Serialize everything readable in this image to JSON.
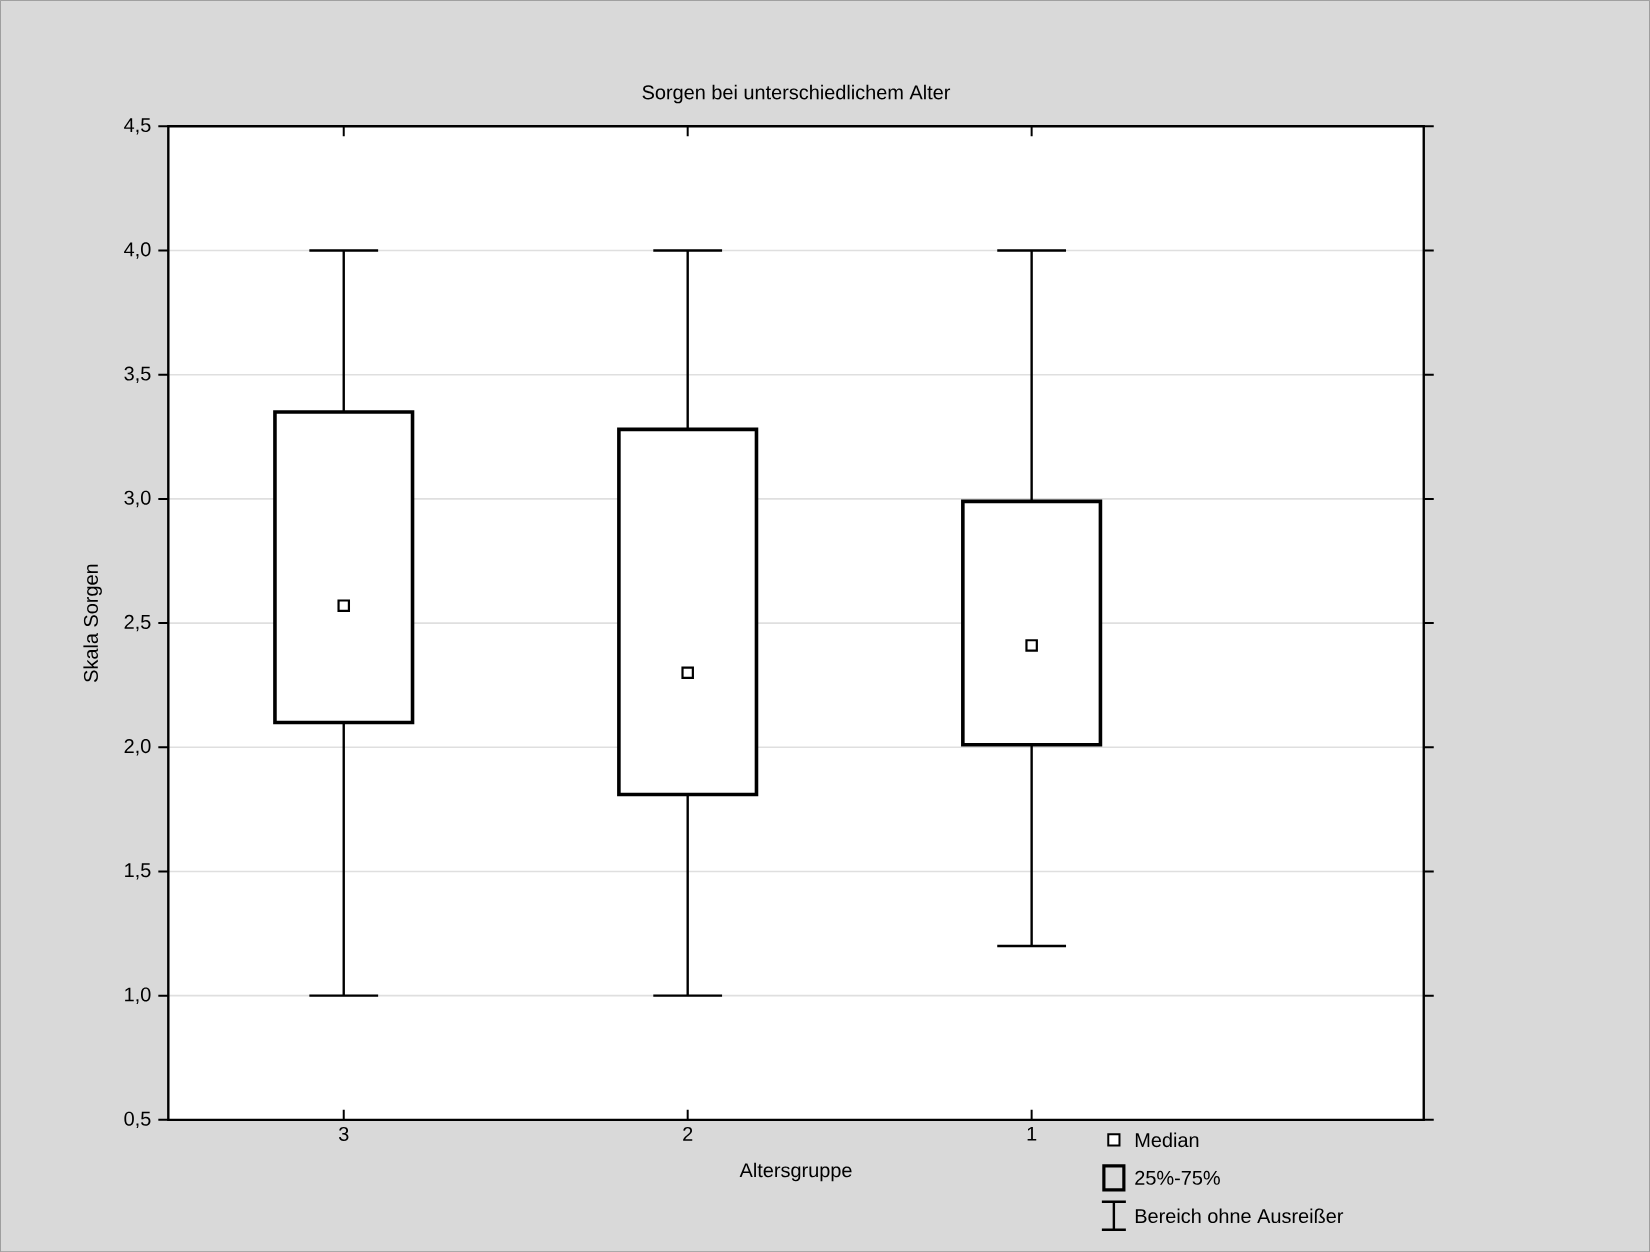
{
  "chart_data": {
    "type": "box",
    "title": "Sorgen bei unterschiedlichem Alter",
    "xlabel": "Altersgruppe",
    "ylabel": "Skala Sorgen",
    "categories": [
      "3",
      "2",
      "1"
    ],
    "boxes": [
      {
        "low": 1.0,
        "q1": 2.1,
        "median": 2.57,
        "q3": 3.35,
        "high": 4.0
      },
      {
        "low": 1.0,
        "q1": 1.81,
        "median": 2.3,
        "q3": 3.28,
        "high": 4.0
      },
      {
        "low": 1.2,
        "q1": 2.01,
        "median": 2.41,
        "q3": 2.99,
        "high": 4.0
      }
    ],
    "ylim": [
      0.5,
      4.5
    ],
    "yticks": [
      {
        "value": 0.5,
        "label": "0,5"
      },
      {
        "value": 1.0,
        "label": "1,0"
      },
      {
        "value": 1.5,
        "label": "1,5"
      },
      {
        "value": 2.0,
        "label": "2,0"
      },
      {
        "value": 2.5,
        "label": "2,5"
      },
      {
        "value": 3.0,
        "label": "3,0"
      },
      {
        "value": 3.5,
        "label": "3,5"
      },
      {
        "value": 4.0,
        "label": "4,0"
      },
      {
        "value": 4.5,
        "label": "4,5"
      }
    ],
    "grid": "y",
    "marker": "square",
    "annotations": [
      "Median",
      "25%-75%",
      "Bereich ohne Ausreißer"
    ]
  }
}
